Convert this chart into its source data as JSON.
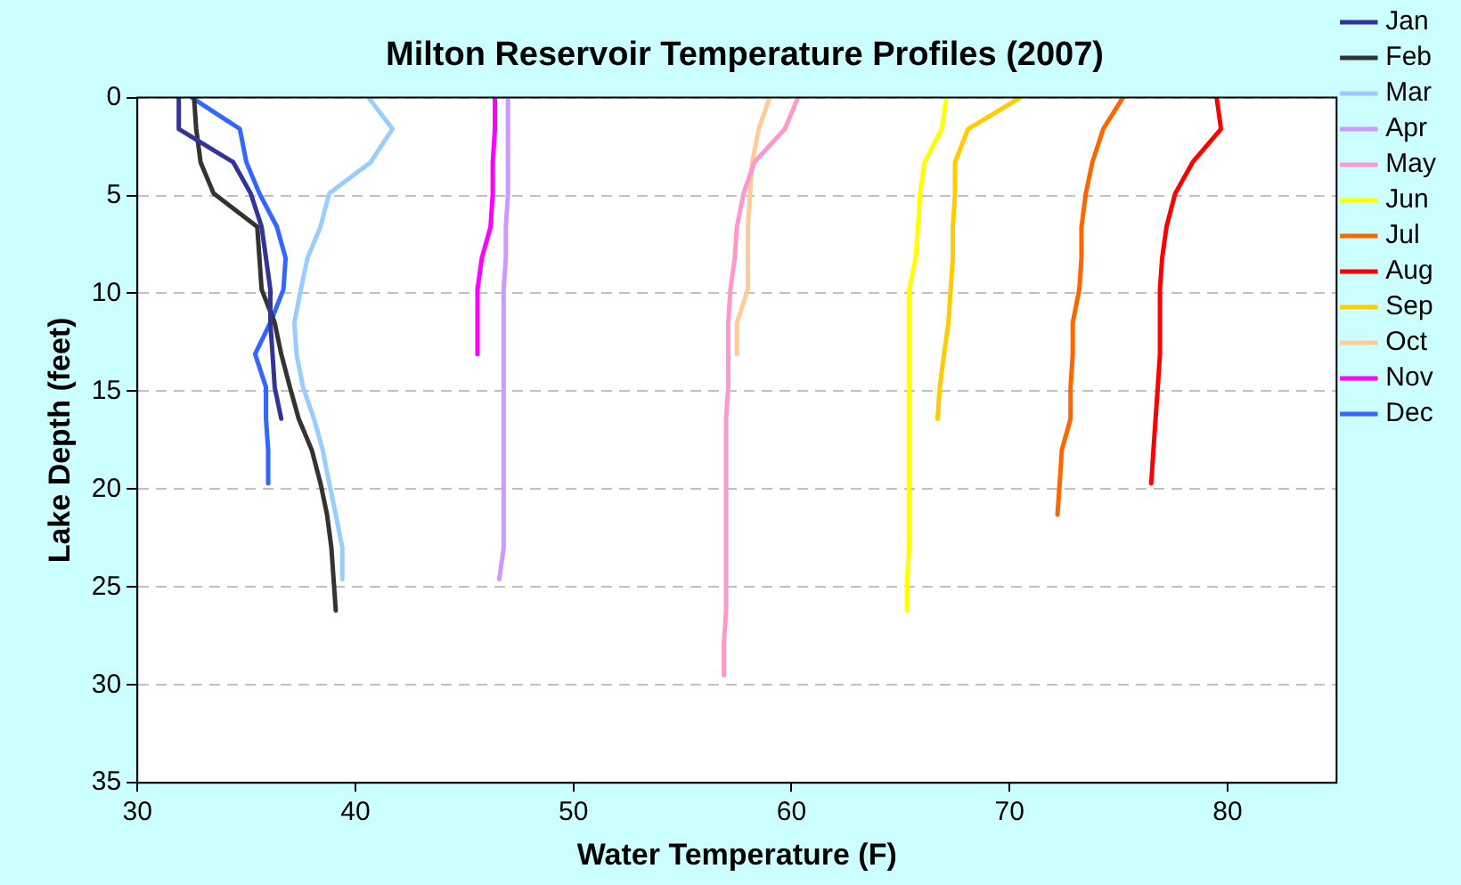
{
  "chart_data": {
    "type": "line",
    "orientation": "horizontal",
    "title": "Milton Reservoir Temperature Profiles (2007)",
    "xlabel": "Water Temperature (F)",
    "ylabel": "Lake Depth (feet)",
    "xlim": [
      30,
      85
    ],
    "xticks": [
      30,
      40,
      50,
      60,
      70,
      80
    ],
    "ylim": [
      35,
      0
    ],
    "yticks": [
      0,
      5,
      10,
      15,
      20,
      25,
      30,
      35
    ],
    "grid": "y",
    "legend": "right",
    "marker": "none",
    "line_style": "solid",
    "series": [
      {
        "name": "Jan",
        "color": "#333399",
        "values": [
          31.9,
          31.9,
          34.4,
          35.2,
          35.7,
          35.9,
          36.1,
          36.1,
          36.2,
          36.3,
          36.6
        ],
        "x": [
          0,
          1.6,
          3.3,
          4.9,
          6.6,
          8.2,
          9.8,
          11.5,
          13.1,
          14.8,
          16.4
        ]
      },
      {
        "name": "Feb",
        "color": "#333333",
        "values": [
          32.6,
          32.7,
          32.9,
          33.5,
          35.5,
          35.6,
          35.7,
          36.3,
          36.6,
          37.0,
          37.4,
          38.0,
          38.4,
          38.7,
          38.9,
          39.0,
          39.1
        ],
        "x": [
          0,
          1.6,
          3.3,
          4.9,
          6.6,
          8.2,
          9.8,
          11.5,
          13.1,
          14.8,
          16.4,
          18,
          19.7,
          21.3,
          23,
          24.6,
          26.2
        ]
      },
      {
        "name": "Mar",
        "color": "#99ccff",
        "values": [
          40.6,
          41.7,
          40.7,
          38.8,
          38.4,
          37.8,
          37.5,
          37.2,
          37.3,
          37.6,
          38.1,
          38.5,
          38.8,
          39.1,
          39.4,
          39.4
        ],
        "x": [
          0,
          1.6,
          3.3,
          4.9,
          6.6,
          8.2,
          9.8,
          11.5,
          13.1,
          14.8,
          16.4,
          18,
          19.7,
          21.3,
          23,
          24.6
        ]
      },
      {
        "name": "Apr",
        "color": "#cc99ff",
        "values": [
          47.0,
          47.0,
          47.0,
          47.0,
          46.9,
          46.9,
          46.8,
          46.8,
          46.8,
          46.8,
          46.8,
          46.8,
          46.8,
          46.8,
          46.8,
          46.6
        ],
        "x": [
          0,
          1.6,
          3.3,
          4.9,
          6.6,
          8.2,
          9.8,
          11.5,
          13.1,
          14.8,
          16.4,
          18,
          19.7,
          21.3,
          23,
          24.6
        ]
      },
      {
        "name": "May",
        "color": "#ff99cc",
        "values": [
          60.3,
          59.7,
          58.3,
          57.8,
          57.5,
          57.4,
          57.2,
          57.1,
          57.1,
          57.1,
          57.0,
          57.0,
          57.0,
          57.0,
          57.0,
          57.0,
          57.0,
          56.9,
          56.9
        ],
        "x": [
          0,
          1.6,
          3.3,
          4.9,
          6.6,
          8.2,
          9.8,
          11.5,
          13.1,
          14.8,
          16.4,
          18,
          19.7,
          21.3,
          23,
          24.6,
          26.2,
          27.9,
          29.5
        ]
      },
      {
        "name": "Jun",
        "color": "#ffff00",
        "values": [
          67.1,
          66.9,
          66.1,
          65.9,
          65.8,
          65.7,
          65.4,
          65.4,
          65.4,
          65.4,
          65.4,
          65.4,
          65.4,
          65.4,
          65.4,
          65.3,
          65.3
        ],
        "x": [
          0,
          1.6,
          3.3,
          4.9,
          6.6,
          8.2,
          9.8,
          11.5,
          13.1,
          14.8,
          16.4,
          18,
          19.7,
          21.3,
          23,
          24.6,
          26.2
        ]
      },
      {
        "name": "Jul",
        "color": "#ff6600",
        "values": [
          75.2,
          74.3,
          73.8,
          73.5,
          73.3,
          73.3,
          73.2,
          72.9,
          72.9,
          72.8,
          72.8,
          72.4,
          72.3,
          72.2
        ],
        "x": [
          0,
          1.6,
          3.3,
          4.9,
          6.6,
          8.2,
          9.8,
          11.5,
          13.1,
          14.8,
          16.4,
          18,
          19.7,
          21.3
        ]
      },
      {
        "name": "Aug",
        "color": "#ff0000",
        "values": [
          79.5,
          79.7,
          78.4,
          77.6,
          77.2,
          77.0,
          76.9,
          76.9,
          76.9,
          76.8,
          76.7,
          76.6,
          76.5
        ],
        "x": [
          0,
          1.6,
          3.3,
          4.9,
          6.6,
          8.2,
          9.8,
          11.5,
          13.1,
          14.8,
          16.4,
          18,
          19.7
        ]
      },
      {
        "name": "Sep",
        "color": "#ffcc00",
        "values": [
          70.5,
          68.1,
          67.5,
          67.5,
          67.4,
          67.4,
          67.3,
          67.2,
          67.0,
          66.8,
          66.7
        ],
        "x": [
          0,
          1.6,
          3.3,
          4.9,
          6.6,
          8.2,
          9.8,
          11.5,
          13.1,
          14.8,
          16.4
        ]
      },
      {
        "name": "Oct",
        "color": "#ffcc99",
        "values": [
          59.0,
          58.5,
          58.2,
          58.1,
          58.0,
          58.0,
          58.0,
          57.5,
          57.5
        ],
        "x": [
          0,
          1.6,
          3.3,
          4.9,
          6.6,
          8.2,
          9.8,
          11.5,
          13.1
        ]
      },
      {
        "name": "Nov",
        "color": "#ff00ff",
        "values": [
          46.4,
          46.4,
          46.3,
          46.3,
          46.2,
          45.8,
          45.6,
          45.6,
          45.6
        ],
        "x": [
          0,
          1.6,
          3.3,
          4.9,
          6.6,
          8.2,
          9.8,
          11.5,
          13.1
        ]
      },
      {
        "name": "Dec",
        "color": "#3366ff",
        "values": [
          32.5,
          34.7,
          35.0,
          35.6,
          36.4,
          36.8,
          36.7,
          36.1,
          35.4,
          35.9,
          35.9,
          36.0,
          36.0
        ],
        "x": [
          0,
          1.6,
          3.3,
          4.9,
          6.6,
          8.2,
          9.8,
          11.5,
          13.1,
          14.8,
          16.4,
          18,
          19.7
        ]
      }
    ]
  }
}
